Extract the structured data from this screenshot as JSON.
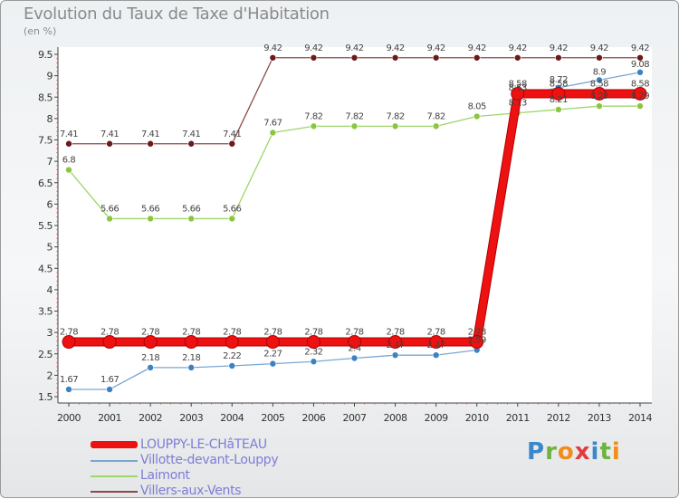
{
  "title": "Evolution du Taux de Taxe d'Habitation",
  "unit_label": "(en %)",
  "logo": {
    "text": "Proxiti",
    "colors": [
      "#3a87c9",
      "#6db33f",
      "#f28c1a",
      "#e23c3c",
      "#3a87c9",
      "#6db33f",
      "#f28c1a"
    ]
  },
  "chart_data": {
    "type": "line",
    "title": "Evolution du Taux de Taxe d'Habitation",
    "ylabel": "(en %)",
    "xlabel": "",
    "x": [
      "2000",
      "2001",
      "2002",
      "2003",
      "2004",
      "2005",
      "2006",
      "2007",
      "2008",
      "2009",
      "2010",
      "2011",
      "2012",
      "2013",
      "2014"
    ],
    "ylim": [
      1.5,
      9.5
    ],
    "yticks": [
      "1.5",
      "2",
      "2.5",
      "3",
      "3.5",
      "4",
      "4.5",
      "5",
      "5.5",
      "6",
      "6.5",
      "7",
      "7.5",
      "8",
      "8.5",
      "9",
      "9.5"
    ],
    "legend_position": "bottom-left",
    "series": [
      {
        "name": "LOUPPY-LE-CHâTEAU",
        "color": "#ee1111",
        "marker_color": "#ee1111",
        "values": [
          2.78,
          2.78,
          2.78,
          2.78,
          2.78,
          2.78,
          2.78,
          2.78,
          2.78,
          2.78,
          2.78,
          8.58,
          8.58,
          8.58,
          8.58
        ],
        "labels": [
          "2.78",
          "2.78",
          "2.78",
          "2.78",
          "2.78",
          "2.78",
          "2.78",
          "2.78",
          "2.78",
          "2.78",
          "2.78",
          "8.58",
          "8.58",
          "8.58",
          "8.58"
        ]
      },
      {
        "name": "Villotte-devant-Louppy",
        "color": "#7aa7d1",
        "marker_color": "#3a82c4",
        "values": [
          1.67,
          1.67,
          2.18,
          2.18,
          2.22,
          2.27,
          2.32,
          2.4,
          2.47,
          2.47,
          2.59,
          8.53,
          8.72,
          8.9,
          9.08
        ],
        "labels": [
          "1.67",
          "1.67",
          "2.18",
          "2.18",
          "2.22",
          "2.27",
          "2.32",
          "2.4",
          "2.47",
          "2.47",
          "2.59",
          "8.53",
          "8.72",
          "8.9",
          "9.08"
        ]
      },
      {
        "name": "Laimont",
        "color": "#9ed66a",
        "marker_color": "#8cc63f",
        "values": [
          6.8,
          5.66,
          5.66,
          5.66,
          5.66,
          7.67,
          7.82,
          7.82,
          7.82,
          7.82,
          8.05,
          8.13,
          8.21,
          8.29,
          8.29
        ],
        "labels": [
          "6.8",
          "5.66",
          "5.66",
          "5.66",
          "5.66",
          "7.67",
          "7.82",
          "7.82",
          "7.82",
          "7.82",
          "8.05",
          "8.13",
          "8.21",
          "8.29",
          "8.29"
        ]
      },
      {
        "name": "Villers-aux-Vents",
        "color": "#8a4a4a",
        "marker_color": "#6b1a1a",
        "values": [
          7.41,
          7.41,
          7.41,
          7.41,
          7.41,
          9.42,
          9.42,
          9.42,
          9.42,
          9.42,
          9.42,
          9.42,
          9.42,
          9.42,
          9.42
        ],
        "labels": [
          "7.41",
          "7.41",
          "7.41",
          "7.41",
          "7.41",
          "9.42",
          "9.42",
          "9.42",
          "9.42",
          "9.42",
          "9.42",
          "9.42",
          "9.42",
          "9.42",
          "9.42"
        ]
      }
    ]
  }
}
